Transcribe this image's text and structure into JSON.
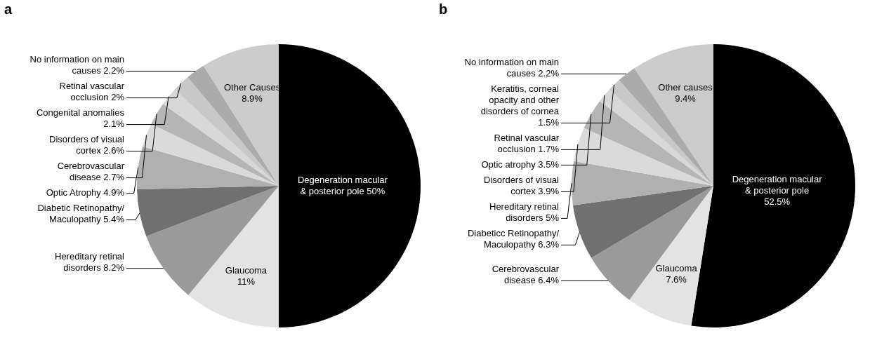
{
  "chart_data": [
    {
      "type": "pie",
      "title": "a",
      "categories": [
        "Degeneration macular & posterior pole",
        "Glaucoma",
        "Hereditary retinal disorders",
        "Diabetic Retinopathy/ Maculopathy",
        "Optic Atrophy",
        "Cerebrovascular disease",
        "Disorders of visual cortex",
        "Congenital anomalies",
        "Retinal vascular occlusion",
        "No information on main causes",
        "Other Causes"
      ],
      "values": [
        50,
        11,
        8.2,
        5.4,
        4.9,
        2.7,
        2.6,
        2.1,
        2,
        2.2,
        8.9
      ],
      "value_labels": [
        "50%",
        "11%",
        "8.2%",
        "5.4%",
        "4.9%",
        "2.7%",
        "2.6%",
        "2.1%",
        "2%",
        "2.2%",
        "8.9%"
      ],
      "colors": [
        "#000000",
        "#e3e3e3",
        "#9a9a9a",
        "#707070",
        "#b0b0b0",
        "#dadada",
        "#b5b5b5",
        "#d8d8d8",
        "#c8c8c8",
        "#ababab",
        "#cccccc"
      ]
    },
    {
      "type": "pie",
      "title": "b",
      "categories": [
        "Degeneration macular & posterior pole",
        "Glaucoma",
        "Cerebrovascular disease",
        "Diabeticc Retinopathy/ Maculopathy",
        "Hereditary retinal disorders",
        "Disorders of visual cortex",
        "Optic atrophy",
        "Retinal vascular occlusion",
        "Keratitis, corneal opacity and other disorders of cornea",
        "No information on main causes",
        "Other causes"
      ],
      "values": [
        52.5,
        7.6,
        6.4,
        6.3,
        5,
        3.9,
        3.5,
        1.7,
        1.5,
        2.2,
        9.4
      ],
      "value_labels": [
        "52.5%",
        "7.6%",
        "6.4%",
        "6.3%",
        "5%",
        "3.9%",
        "3.5%",
        "1.7%",
        "1.5%",
        "2.2%",
        "9.4%"
      ],
      "colors": [
        "#000000",
        "#e3e3e3",
        "#9a9a9a",
        "#707070",
        "#b0b0b0",
        "#dadada",
        "#b5b5b5",
        "#d8d8d8",
        "#c8c8c8",
        "#ababab",
        "#cccccc"
      ]
    }
  ]
}
